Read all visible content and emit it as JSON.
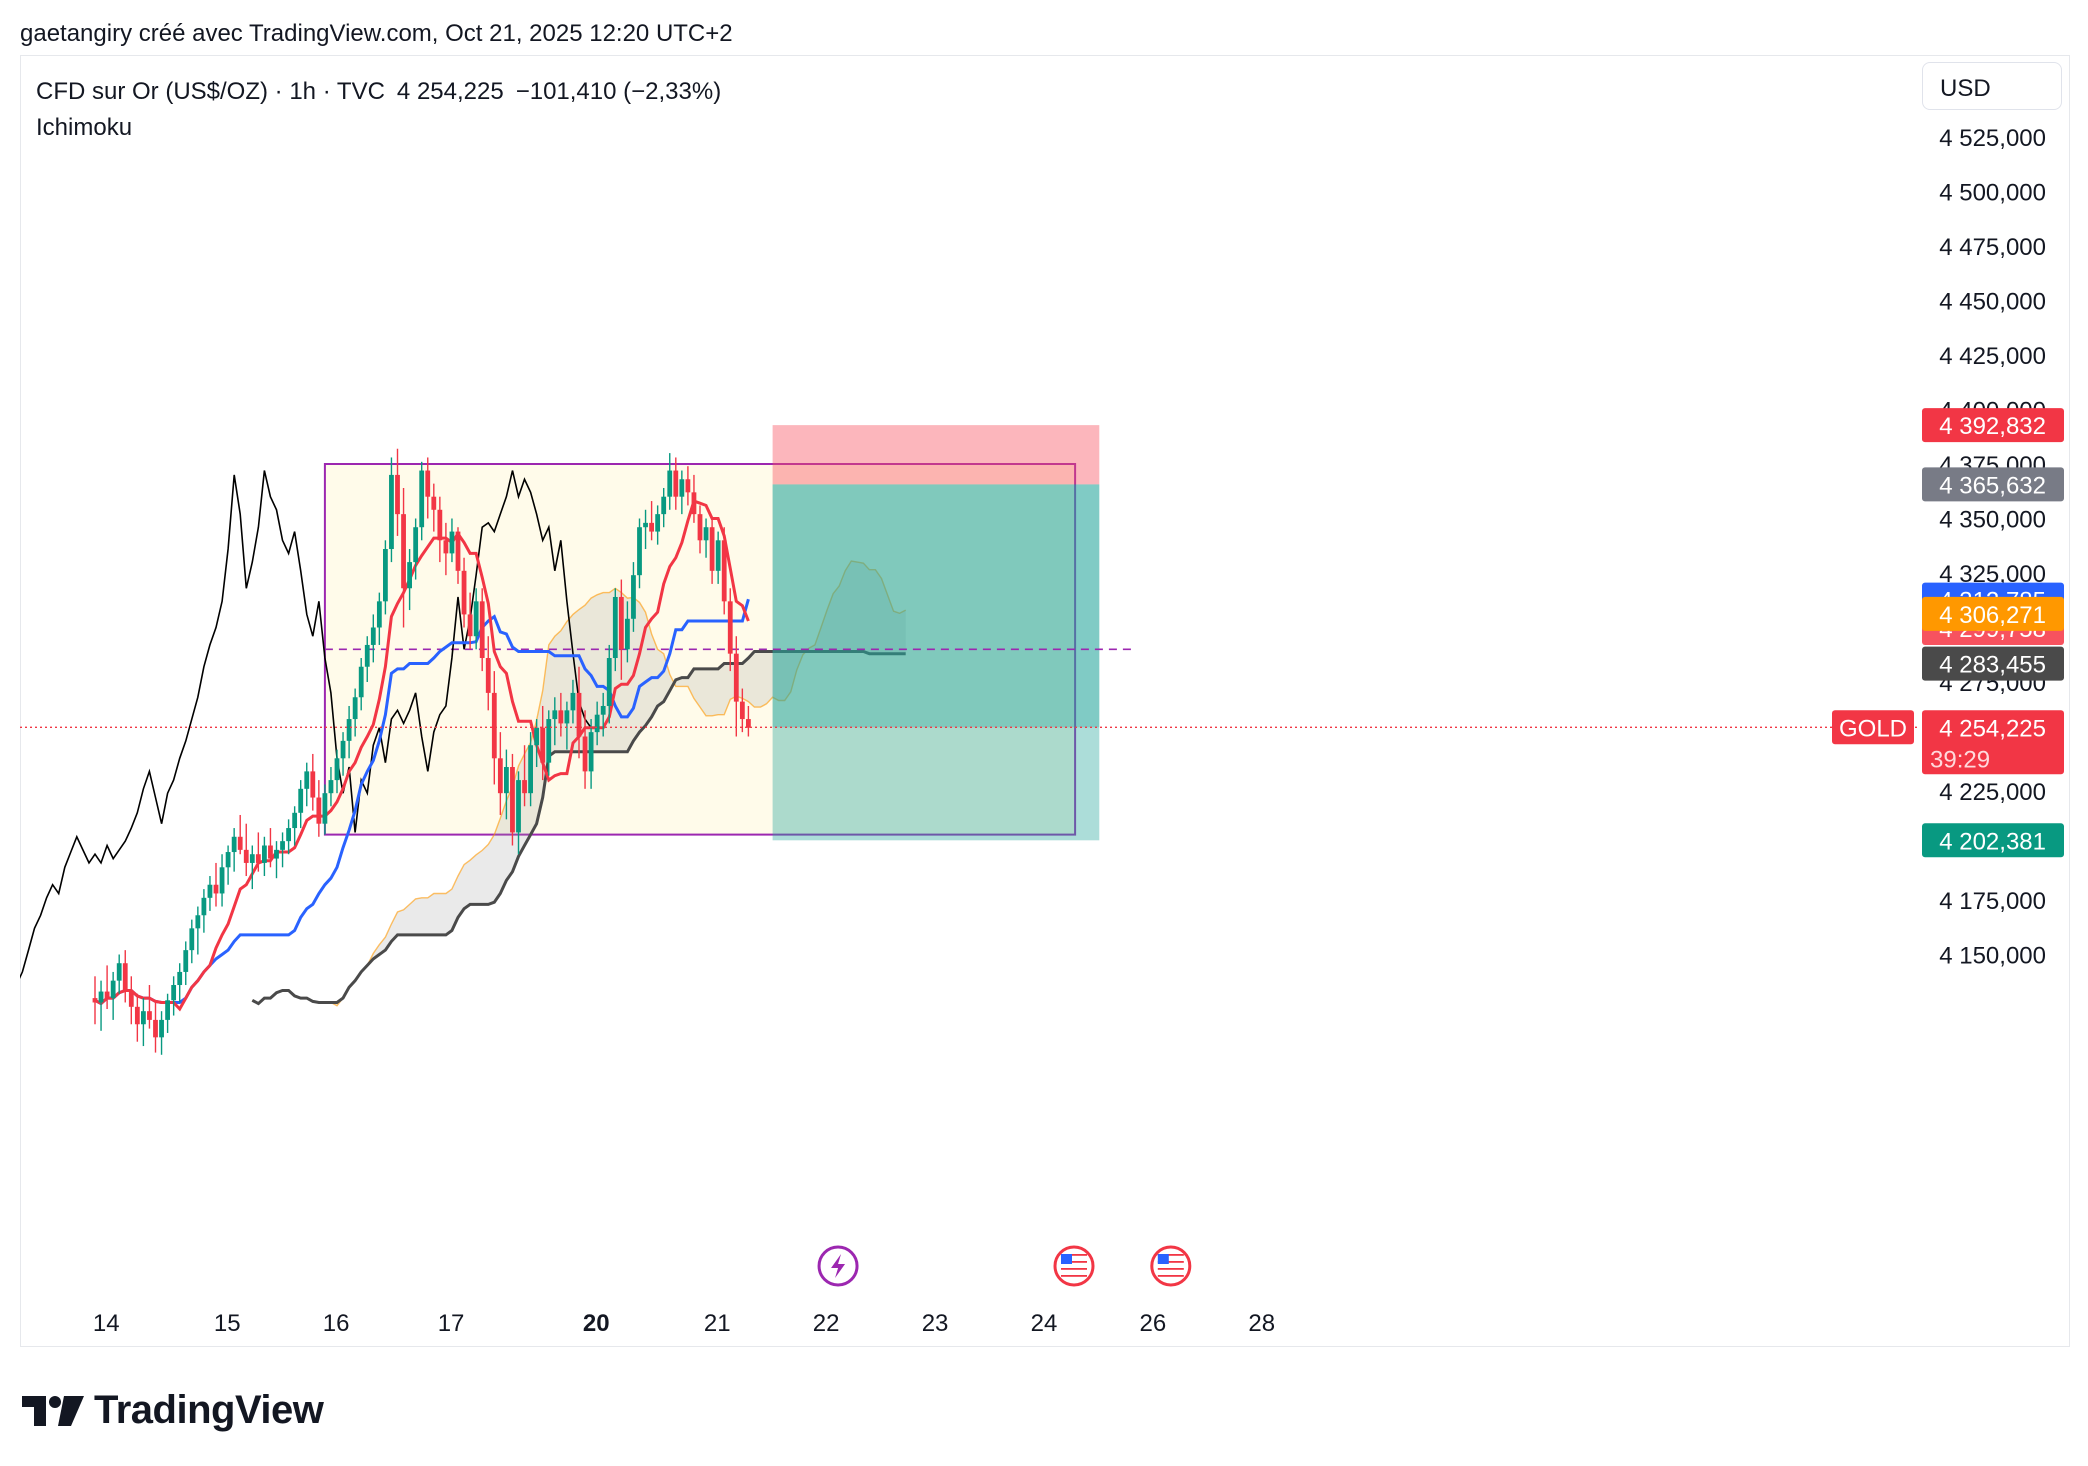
{
  "caption": "gaetangiry créé avec TradingView.com, Oct 21, 2025 12:20 UTC+2",
  "header": {
    "symbol": "CFD sur Or (US$/OZ) · 1h · TVC",
    "price": "4 254,225",
    "change": "−101,410 (−2,33%)",
    "indicator": "Ichimoku"
  },
  "currency_button": "USD",
  "logo_text": "TradingView",
  "colors": {
    "up": "#089981",
    "down": "#f23645",
    "tenkan": "#f23645",
    "kijun": "#2962ff",
    "chikou": "#000000",
    "span_a": "#ff9800",
    "span_b": "#4a4a4a",
    "range_box": "#9c27b0",
    "range_fill": "#fffbea",
    "target_zone": "#26a69a",
    "stop_zone": "#f7525f"
  },
  "chart_data": {
    "type": "candlestick",
    "symbol": "CFD sur Or (US$/OZ)",
    "timeframe": "1h",
    "y_axis": {
      "min": 4130,
      "max": 4540,
      "ticks": [
        "4 525,000",
        "4 500,000",
        "4 475,000",
        "4 450,000",
        "4 425,000",
        "4 400,000",
        "4 375,000",
        "4 350,000",
        "4 325,000",
        "4 275,000",
        "4 225,000",
        "4 175,000",
        "4 150,000"
      ],
      "tick_values": [
        4525,
        4500,
        4475,
        4450,
        4425,
        4400,
        4375,
        4350,
        4325,
        4275,
        4225,
        4175,
        4150
      ]
    },
    "x_axis": {
      "labels": [
        "14",
        "15",
        "16",
        "17",
        "20",
        "21",
        "22",
        "23",
        "24",
        "26",
        "28"
      ],
      "bold_label": "20",
      "label_bar_index": [
        4,
        24,
        42,
        61,
        85,
        105,
        123,
        141,
        159,
        177,
        195
      ]
    },
    "price_labels": [
      {
        "text": "4 392,832",
        "value": 4392.832,
        "color": "#f23645"
      },
      {
        "text": "4 365,632",
        "value": 4365.632,
        "color": "#787b86"
      },
      {
        "text": "4 312,785",
        "value": 4312.785,
        "color": "#2962ff"
      },
      {
        "text": "4 299,758",
        "value": 4299.758,
        "color": "#f7525f"
      },
      {
        "text": "4 306,271",
        "value": 4306.271,
        "color": "#ff9800"
      },
      {
        "text": "4 283,455",
        "value": 4283.455,
        "color": "#4a4a4a"
      },
      {
        "text": "4 202,381",
        "value": 4202.381,
        "color": "#089981"
      }
    ],
    "last_price": {
      "text": "4 254,225",
      "value": 4254.225,
      "countdown": "39:29",
      "symbol_tag": "GOLD",
      "color": "#f23645"
    },
    "range_box": {
      "bar_start": 38,
      "bar_end": 162,
      "top": 4375,
      "bottom": 4205,
      "mid": 4290
    },
    "position_short": {
      "bar_start": 112,
      "bar_end": 166,
      "entry": 4365.632,
      "stop": 4392.832,
      "target": 4202.381
    },
    "event_markers": [
      {
        "bar": 121,
        "type": "lightning-icon"
      },
      {
        "bar": 160,
        "type": "us-flag-icon"
      },
      {
        "bar": 176,
        "type": "us-flag-icon"
      }
    ],
    "candles": [
      {
        "o": 4130,
        "h": 4140,
        "l": 4118,
        "c": 4128
      },
      {
        "o": 4128,
        "h": 4138,
        "l": 4115,
        "c": 4133
      },
      {
        "o": 4133,
        "h": 4145,
        "l": 4125,
        "c": 4130
      },
      {
        "o": 4130,
        "h": 4142,
        "l": 4120,
        "c": 4138
      },
      {
        "o": 4138,
        "h": 4150,
        "l": 4132,
        "c": 4146
      },
      {
        "o": 4146,
        "h": 4152,
        "l": 4128,
        "c": 4133
      },
      {
        "o": 4133,
        "h": 4140,
        "l": 4118,
        "c": 4126
      },
      {
        "o": 4126,
        "h": 4132,
        "l": 4110,
        "c": 4118
      },
      {
        "o": 4118,
        "h": 4130,
        "l": 4108,
        "c": 4124
      },
      {
        "o": 4124,
        "h": 4136,
        "l": 4116,
        "c": 4120
      },
      {
        "o": 4120,
        "h": 4128,
        "l": 4105,
        "c": 4112
      },
      {
        "o": 4112,
        "h": 4124,
        "l": 4104,
        "c": 4120
      },
      {
        "o": 4120,
        "h": 4132,
        "l": 4114,
        "c": 4129
      },
      {
        "o": 4129,
        "h": 4140,
        "l": 4122,
        "c": 4136
      },
      {
        "o": 4136,
        "h": 4146,
        "l": 4128,
        "c": 4142
      },
      {
        "o": 4142,
        "h": 4156,
        "l": 4136,
        "c": 4152
      },
      {
        "o": 4152,
        "h": 4166,
        "l": 4146,
        "c": 4162
      },
      {
        "o": 4162,
        "h": 4172,
        "l": 4150,
        "c": 4168
      },
      {
        "o": 4168,
        "h": 4180,
        "l": 4160,
        "c": 4176
      },
      {
        "o": 4176,
        "h": 4186,
        "l": 4170,
        "c": 4182
      },
      {
        "o": 4182,
        "h": 4192,
        "l": 4172,
        "c": 4178
      },
      {
        "o": 4178,
        "h": 4196,
        "l": 4172,
        "c": 4190
      },
      {
        "o": 4190,
        "h": 4200,
        "l": 4182,
        "c": 4197
      },
      {
        "o": 4197,
        "h": 4208,
        "l": 4188,
        "c": 4204
      },
      {
        "o": 4204,
        "h": 4214,
        "l": 4196,
        "c": 4198
      },
      {
        "o": 4198,
        "h": 4210,
        "l": 4186,
        "c": 4192
      },
      {
        "o": 4192,
        "h": 4200,
        "l": 4180,
        "c": 4196
      },
      {
        "o": 4196,
        "h": 4206,
        "l": 4188,
        "c": 4192
      },
      {
        "o": 4192,
        "h": 4204,
        "l": 4186,
        "c": 4200
      },
      {
        "o": 4200,
        "h": 4208,
        "l": 4190,
        "c": 4194
      },
      {
        "o": 4194,
        "h": 4202,
        "l": 4185,
        "c": 4198
      },
      {
        "o": 4198,
        "h": 4206,
        "l": 4190,
        "c": 4202
      },
      {
        "o": 4202,
        "h": 4212,
        "l": 4196,
        "c": 4208
      },
      {
        "o": 4208,
        "h": 4218,
        "l": 4200,
        "c": 4215
      },
      {
        "o": 4215,
        "h": 4230,
        "l": 4208,
        "c": 4226
      },
      {
        "o": 4226,
        "h": 4238,
        "l": 4218,
        "c": 4234
      },
      {
        "o": 4234,
        "h": 4242,
        "l": 4216,
        "c": 4222
      },
      {
        "o": 4222,
        "h": 4230,
        "l": 4204,
        "c": 4210
      },
      {
        "o": 4210,
        "h": 4228,
        "l": 4205,
        "c": 4224
      },
      {
        "o": 4224,
        "h": 4236,
        "l": 4218,
        "c": 4230
      },
      {
        "o": 4230,
        "h": 4244,
        "l": 4224,
        "c": 4240
      },
      {
        "o": 4240,
        "h": 4252,
        "l": 4232,
        "c": 4248
      },
      {
        "o": 4248,
        "h": 4264,
        "l": 4240,
        "c": 4258
      },
      {
        "o": 4258,
        "h": 4272,
        "l": 4250,
        "c": 4268
      },
      {
        "o": 4268,
        "h": 4286,
        "l": 4262,
        "c": 4282
      },
      {
        "o": 4282,
        "h": 4296,
        "l": 4275,
        "c": 4292
      },
      {
        "o": 4292,
        "h": 4306,
        "l": 4284,
        "c": 4300
      },
      {
        "o": 4300,
        "h": 4316,
        "l": 4292,
        "c": 4312
      },
      {
        "o": 4312,
        "h": 4340,
        "l": 4306,
        "c": 4336
      },
      {
        "o": 4336,
        "h": 4378,
        "l": 4330,
        "c": 4370
      },
      {
        "o": 4370,
        "h": 4382,
        "l": 4342,
        "c": 4352
      },
      {
        "o": 4352,
        "h": 4364,
        "l": 4300,
        "c": 4318
      },
      {
        "o": 4318,
        "h": 4336,
        "l": 4308,
        "c": 4330
      },
      {
        "o": 4330,
        "h": 4350,
        "l": 4322,
        "c": 4346
      },
      {
        "o": 4346,
        "h": 4376,
        "l": 4340,
        "c": 4372
      },
      {
        "o": 4372,
        "h": 4378,
        "l": 4350,
        "c": 4360
      },
      {
        "o": 4360,
        "h": 4366,
        "l": 4344,
        "c": 4354
      },
      {
        "o": 4354,
        "h": 4360,
        "l": 4330,
        "c": 4340
      },
      {
        "o": 4340,
        "h": 4348,
        "l": 4324,
        "c": 4334
      },
      {
        "o": 4334,
        "h": 4350,
        "l": 4330,
        "c": 4344
      },
      {
        "o": 4344,
        "h": 4346,
        "l": 4320,
        "c": 4326
      },
      {
        "o": 4326,
        "h": 4332,
        "l": 4300,
        "c": 4306
      },
      {
        "o": 4306,
        "h": 4316,
        "l": 4290,
        "c": 4296
      },
      {
        "o": 4296,
        "h": 4318,
        "l": 4290,
        "c": 4312
      },
      {
        "o": 4312,
        "h": 4318,
        "l": 4280,
        "c": 4286
      },
      {
        "o": 4286,
        "h": 4296,
        "l": 4262,
        "c": 4270
      },
      {
        "o": 4270,
        "h": 4280,
        "l": 4228,
        "c": 4240
      },
      {
        "o": 4240,
        "h": 4252,
        "l": 4214,
        "c": 4224
      },
      {
        "o": 4224,
        "h": 4244,
        "l": 4212,
        "c": 4236
      },
      {
        "o": 4236,
        "h": 4242,
        "l": 4200,
        "c": 4206
      },
      {
        "o": 4206,
        "h": 4234,
        "l": 4196,
        "c": 4230
      },
      {
        "o": 4230,
        "h": 4246,
        "l": 4218,
        "c": 4224
      },
      {
        "o": 4224,
        "h": 4252,
        "l": 4218,
        "c": 4246
      },
      {
        "o": 4246,
        "h": 4258,
        "l": 4236,
        "c": 4254
      },
      {
        "o": 4254,
        "h": 4264,
        "l": 4230,
        "c": 4238
      },
      {
        "o": 4238,
        "h": 4262,
        "l": 4232,
        "c": 4258
      },
      {
        "o": 4258,
        "h": 4268,
        "l": 4246,
        "c": 4262
      },
      {
        "o": 4262,
        "h": 4270,
        "l": 4250,
        "c": 4256
      },
      {
        "o": 4256,
        "h": 4266,
        "l": 4244,
        "c": 4262
      },
      {
        "o": 4262,
        "h": 4276,
        "l": 4256,
        "c": 4270
      },
      {
        "o": 4270,
        "h": 4282,
        "l": 4240,
        "c": 4250
      },
      {
        "o": 4250,
        "h": 4262,
        "l": 4226,
        "c": 4234
      },
      {
        "o": 4234,
        "h": 4258,
        "l": 4226,
        "c": 4252
      },
      {
        "o": 4252,
        "h": 4266,
        "l": 4246,
        "c": 4260
      },
      {
        "o": 4260,
        "h": 4270,
        "l": 4250,
        "c": 4264
      },
      {
        "o": 4264,
        "h": 4292,
        "l": 4256,
        "c": 4286
      },
      {
        "o": 4286,
        "h": 4318,
        "l": 4280,
        "c": 4314
      },
      {
        "o": 4314,
        "h": 4322,
        "l": 4276,
        "c": 4290
      },
      {
        "o": 4290,
        "h": 4312,
        "l": 4284,
        "c": 4304
      },
      {
        "o": 4304,
        "h": 4330,
        "l": 4298,
        "c": 4324
      },
      {
        "o": 4324,
        "h": 4350,
        "l": 4318,
        "c": 4346
      },
      {
        "o": 4346,
        "h": 4354,
        "l": 4336,
        "c": 4348
      },
      {
        "o": 4348,
        "h": 4358,
        "l": 4340,
        "c": 4344
      },
      {
        "o": 4344,
        "h": 4356,
        "l": 4338,
        "c": 4352
      },
      {
        "o": 4352,
        "h": 4364,
        "l": 4346,
        "c": 4360
      },
      {
        "o": 4360,
        "h": 4380,
        "l": 4354,
        "c": 4372
      },
      {
        "o": 4372,
        "h": 4378,
        "l": 4354,
        "c": 4360
      },
      {
        "o": 4360,
        "h": 4372,
        "l": 4352,
        "c": 4368
      },
      {
        "o": 4368,
        "h": 4374,
        "l": 4356,
        "c": 4362
      },
      {
        "o": 4362,
        "h": 4370,
        "l": 4348,
        "c": 4352
      },
      {
        "o": 4352,
        "h": 4356,
        "l": 4334,
        "c": 4340
      },
      {
        "o": 4340,
        "h": 4350,
        "l": 4332,
        "c": 4346
      },
      {
        "o": 4346,
        "h": 4350,
        "l": 4320,
        "c": 4326
      },
      {
        "o": 4326,
        "h": 4344,
        "l": 4320,
        "c": 4340
      },
      {
        "o": 4340,
        "h": 4346,
        "l": 4306,
        "c": 4312
      },
      {
        "o": 4312,
        "h": 4318,
        "l": 4280,
        "c": 4288
      },
      {
        "o": 4288,
        "h": 4296,
        "l": 4250,
        "c": 4266
      },
      {
        "o": 4266,
        "h": 4272,
        "l": 4252,
        "c": 4258
      },
      {
        "o": 4258,
        "h": 4264,
        "l": 4250,
        "c": 4254
      }
    ]
  }
}
